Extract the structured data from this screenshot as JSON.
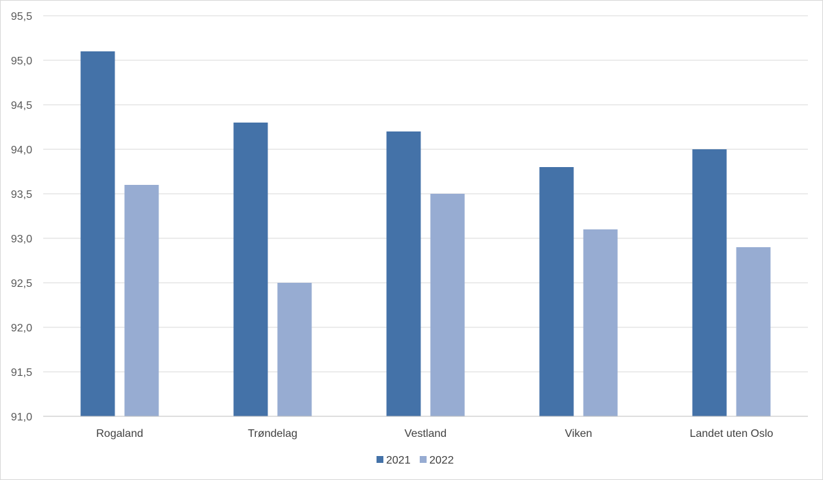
{
  "chart_data": {
    "type": "bar",
    "title": "",
    "xlabel": "",
    "ylabel": "",
    "categories": [
      "Rogaland",
      "Trøndelag",
      "Vestland",
      "Viken",
      "Landet uten Oslo"
    ],
    "series": [
      {
        "name": "2021",
        "values": [
          95.1,
          94.3,
          94.2,
          93.8,
          94.0
        ],
        "color": "#4472a8"
      },
      {
        "name": "2022",
        "values": [
          93.6,
          92.5,
          93.5,
          93.1,
          92.9
        ],
        "color": "#97acd2"
      }
    ],
    "ylim": [
      91.0,
      95.5
    ],
    "yticks": [
      "91,0",
      "91,5",
      "92,0",
      "92,5",
      "93,0",
      "93,5",
      "94,0",
      "94,5",
      "95,0",
      "95,5"
    ],
    "grid": true,
    "legend_position": "bottom-center"
  }
}
